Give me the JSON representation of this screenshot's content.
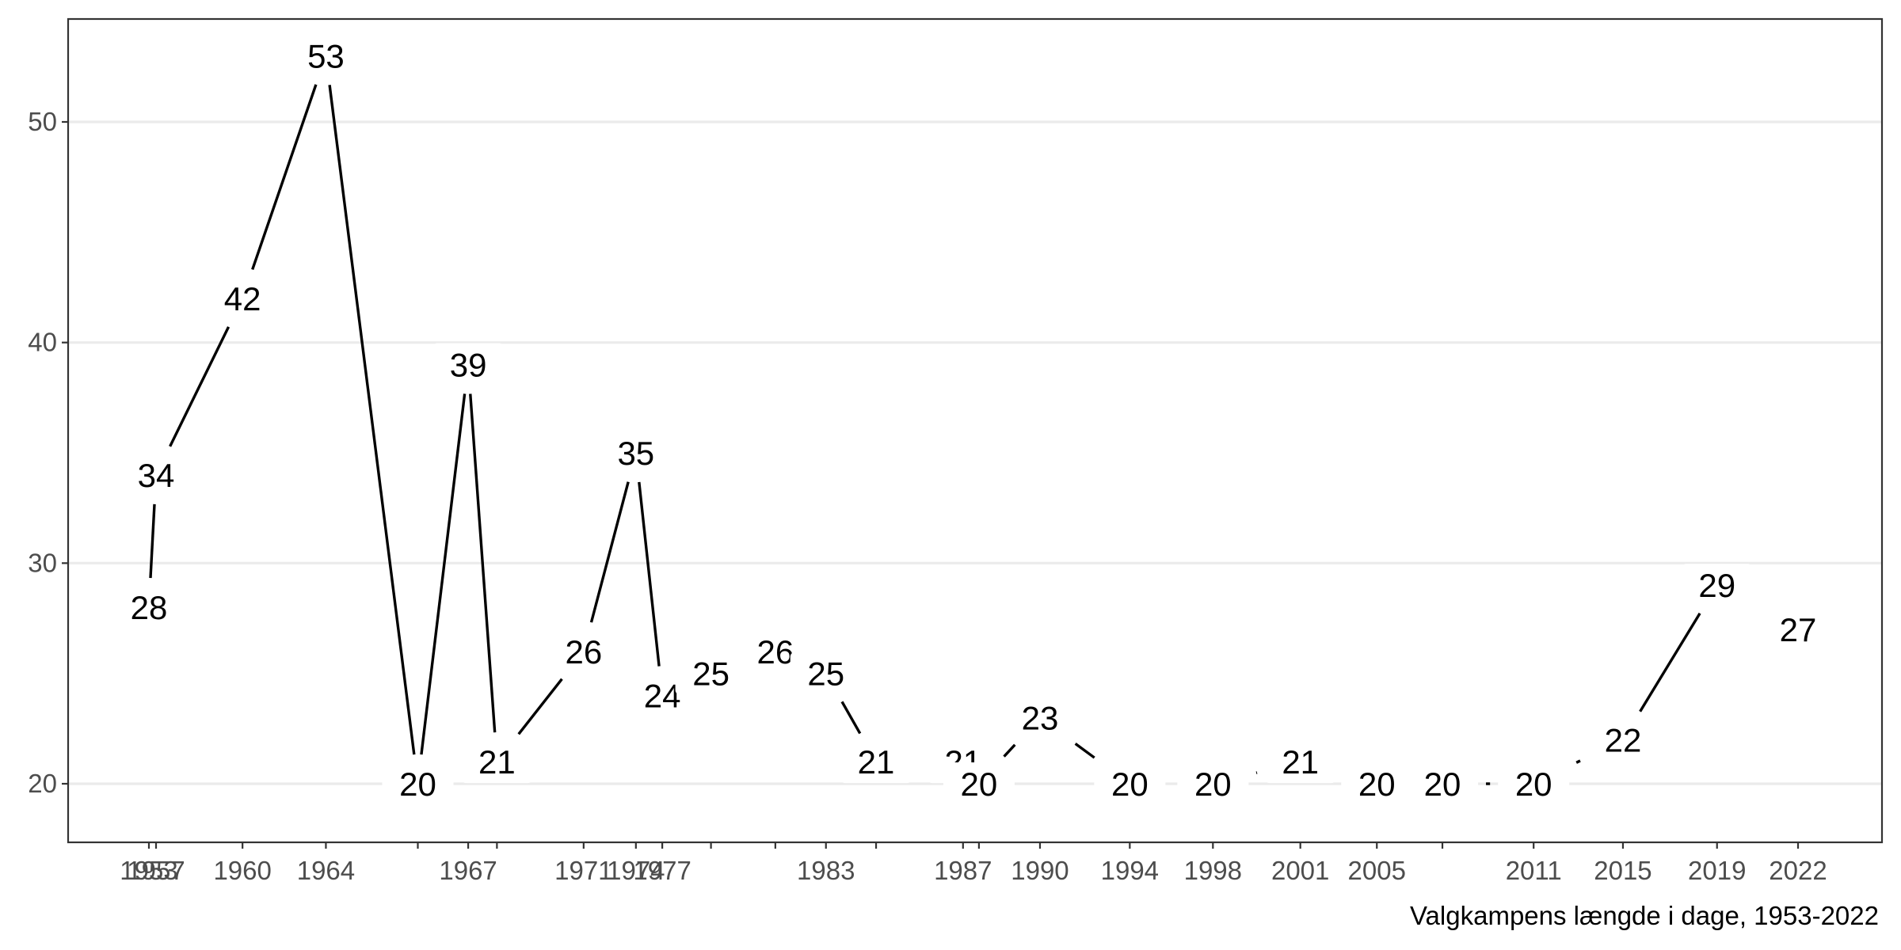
{
  "chart_data": {
    "type": "line",
    "title": "",
    "xlabel": "",
    "ylabel": "",
    "caption": "Valgkampens længde i dage, 1953-2022",
    "x_tick_labels": [
      "1953",
      "1957",
      "1960",
      "1964",
      "1967",
      "1971",
      "1974",
      "1977",
      "1983",
      "1987",
      "1990",
      "1994",
      "1998",
      "2001",
      "2005",
      "2011",
      "2015",
      "2019",
      "2022"
    ],
    "y_ticks": [
      20,
      30,
      40,
      50
    ],
    "ylim": [
      17.375,
      54.625
    ],
    "grid": "horizontal-major",
    "line_color": "#000000",
    "points": [
      {
        "x": 1953.42,
        "y": 28
      },
      {
        "x": 1953.72,
        "y": 34
      },
      {
        "x": 1957.36,
        "y": 42
      },
      {
        "x": 1960.87,
        "y": 53
      },
      {
        "x": 1964.74,
        "y": 20
      },
      {
        "x": 1966.86,
        "y": 39
      },
      {
        "x": 1968.07,
        "y": 21
      },
      {
        "x": 1971.72,
        "y": 26
      },
      {
        "x": 1973.92,
        "y": 35
      },
      {
        "x": 1975.03,
        "y": 24
      },
      {
        "x": 1977.08,
        "y": 25
      },
      {
        "x": 1979.79,
        "y": 26
      },
      {
        "x": 1981.92,
        "y": 25
      },
      {
        "x": 1984.03,
        "y": 21
      },
      {
        "x": 1987.69,
        "y": 21
      },
      {
        "x": 1988.36,
        "y": 20
      },
      {
        "x": 1990.93,
        "y": 23
      },
      {
        "x": 1994.71,
        "y": 20
      },
      {
        "x": 1998.21,
        "y": 20
      },
      {
        "x": 2001.89,
        "y": 21
      },
      {
        "x": 2005.11,
        "y": 20
      },
      {
        "x": 2007.87,
        "y": 20
      },
      {
        "x": 2011.71,
        "y": 20
      },
      {
        "x": 2015.47,
        "y": 22
      },
      {
        "x": 2019.43,
        "y": 29
      },
      {
        "x": 2022.84,
        "y": 27
      }
    ]
  }
}
